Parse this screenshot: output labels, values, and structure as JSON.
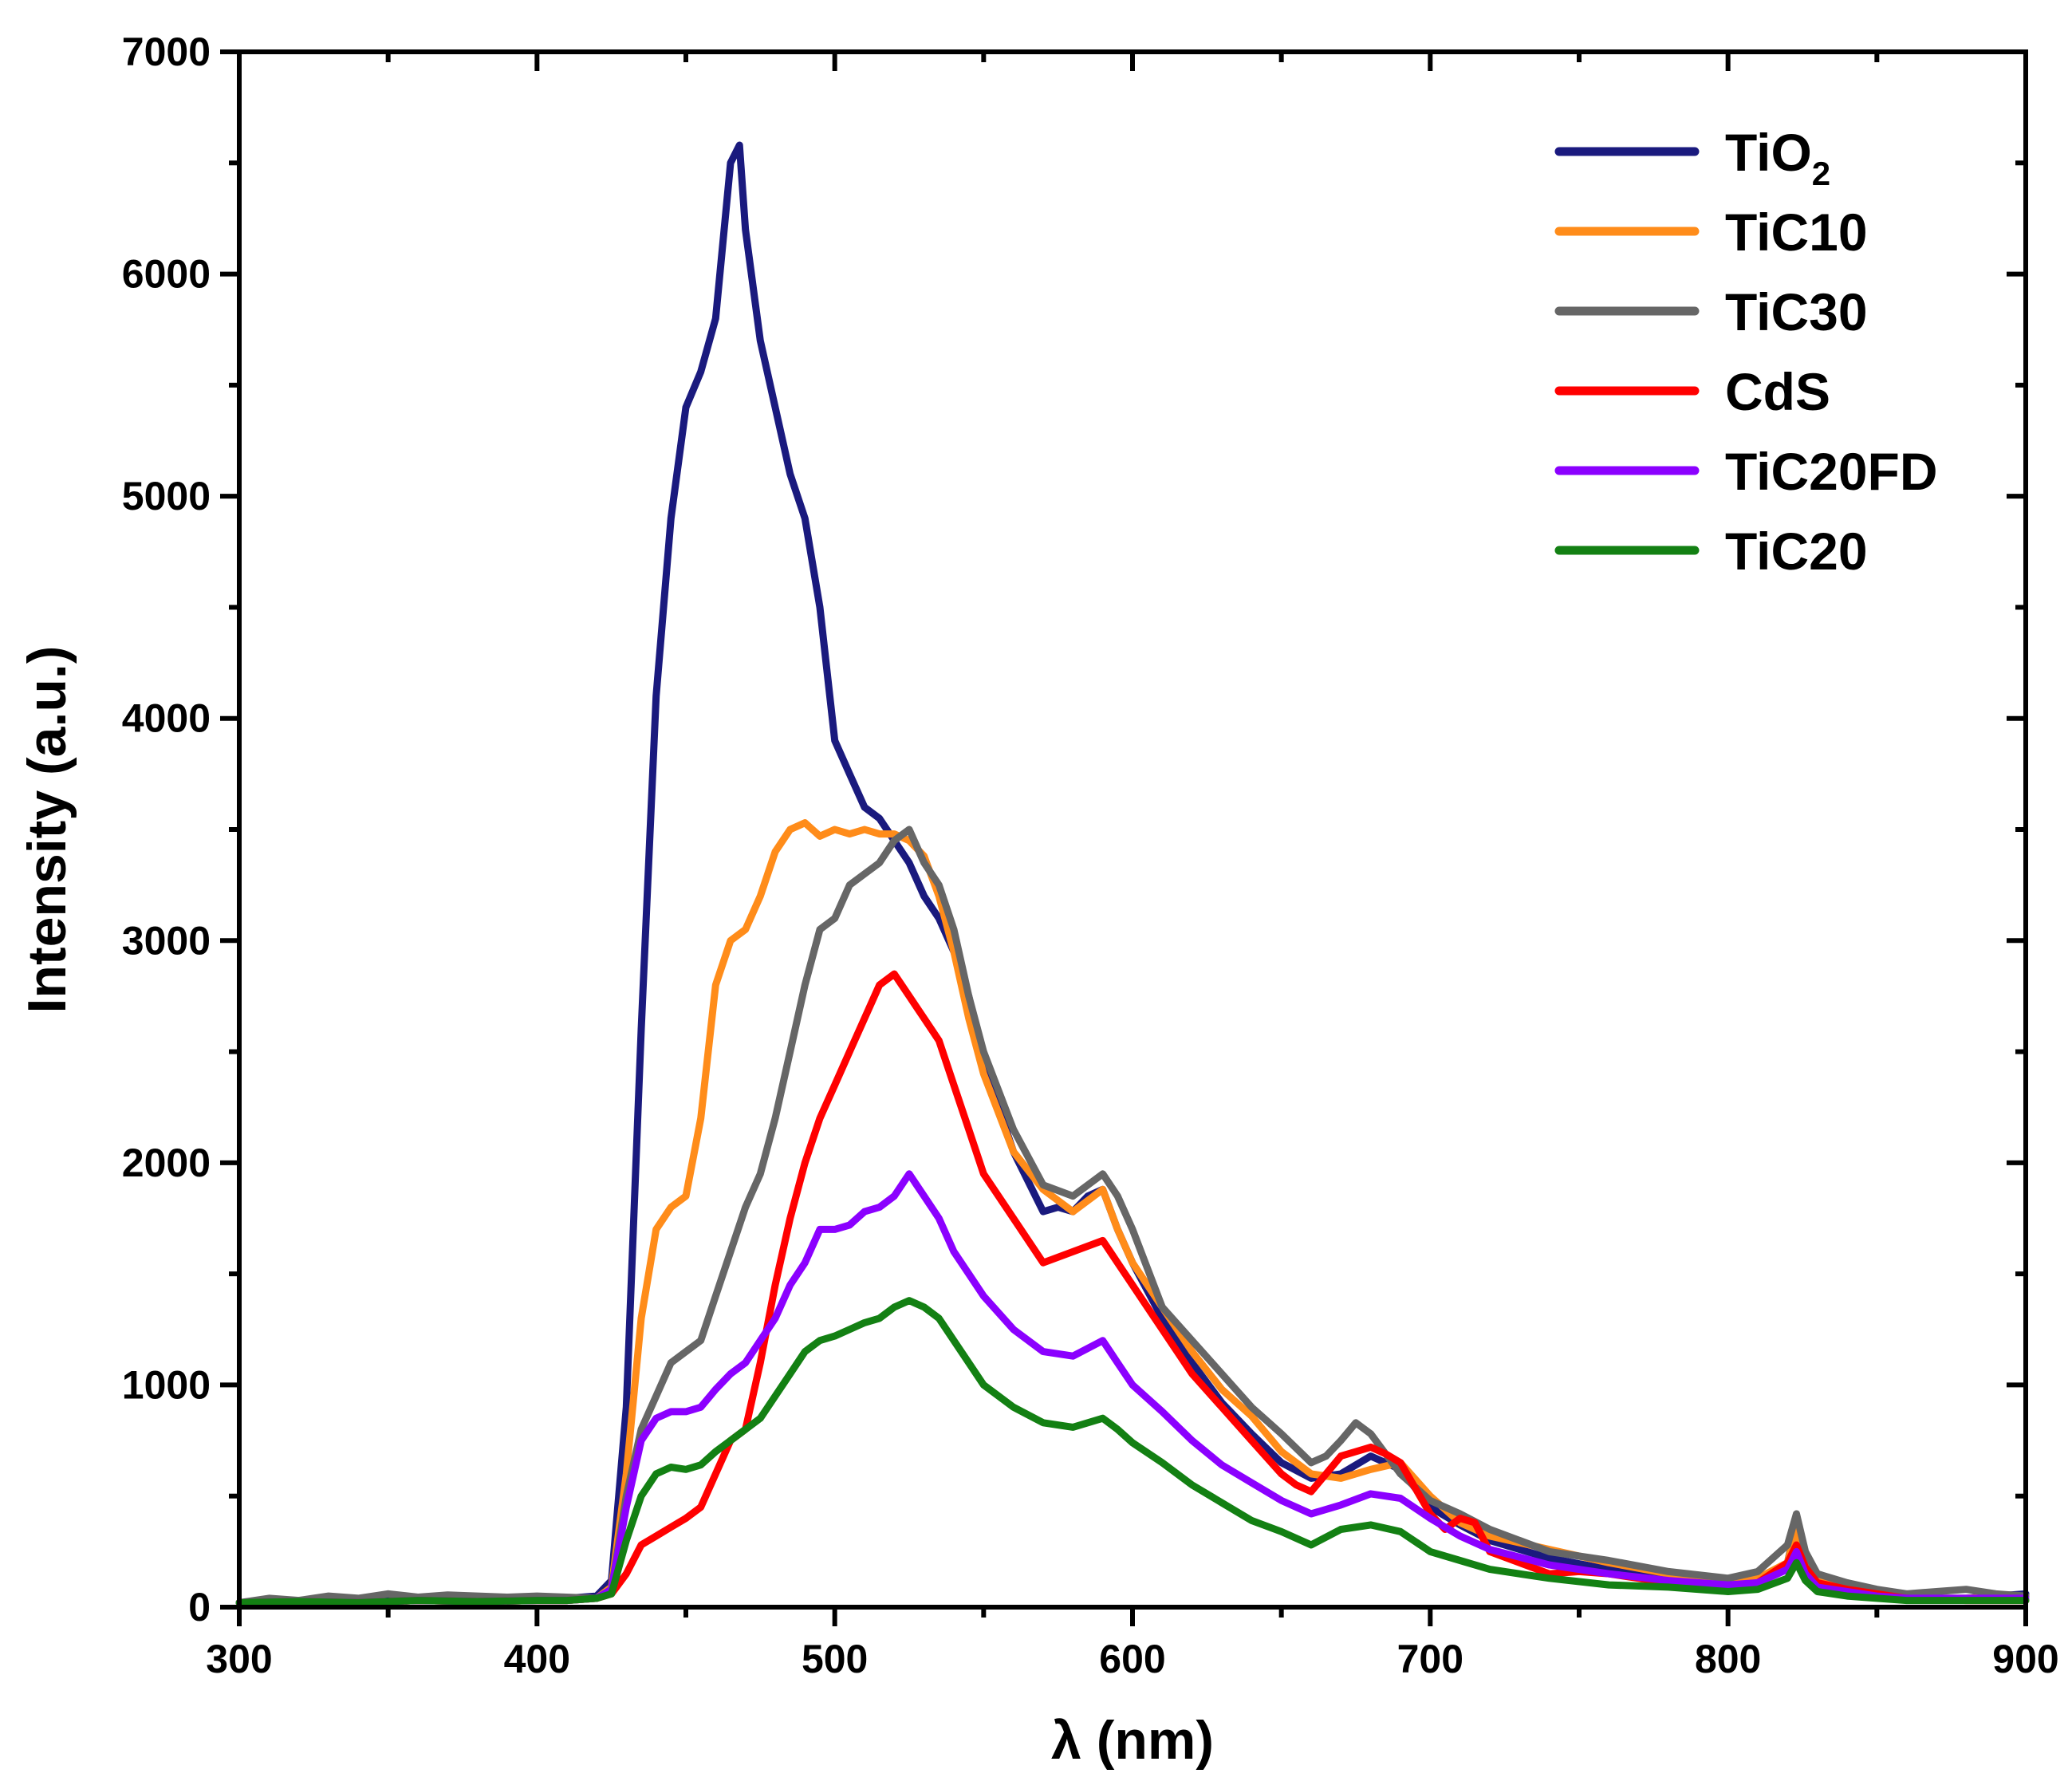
{
  "chart_data": {
    "type": "line",
    "title": "",
    "xlabel": "λ (nm)",
    "ylabel": "Intensity (a.u.)",
    "xlim": [
      300,
      900
    ],
    "ylim": [
      0,
      7000
    ],
    "xticks": [
      300,
      400,
      500,
      600,
      700,
      800,
      900
    ],
    "yticks": [
      0,
      1000,
      2000,
      3000,
      4000,
      5000,
      6000,
      7000
    ],
    "grid": false,
    "legend_position": "top-right",
    "series": [
      {
        "name": "TiO2",
        "label_main": "TiO",
        "label_sub": "2",
        "color": "#1a1a7e",
        "x": [
          300,
          320,
          340,
          360,
          380,
          400,
          410,
          420,
          425,
          430,
          435,
          440,
          445,
          450,
          455,
          460,
          465,
          468,
          470,
          475,
          480,
          485,
          490,
          495,
          500,
          505,
          510,
          515,
          520,
          525,
          530,
          535,
          540,
          545,
          550,
          560,
          570,
          575,
          580,
          585,
          590,
          595,
          600,
          610,
          620,
          630,
          640,
          650,
          660,
          670,
          680,
          690,
          700,
          710,
          720,
          740,
          760,
          780,
          800,
          810,
          820,
          823,
          826,
          830,
          840,
          850,
          860,
          880,
          900
        ],
        "y": [
          20,
          30,
          25,
          35,
          30,
          40,
          40,
          50,
          120,
          900,
          2600,
          4100,
          4900,
          5400,
          5560,
          5800,
          6500,
          6580,
          6200,
          5700,
          5400,
          5100,
          4900,
          4500,
          3900,
          3750,
          3600,
          3550,
          3450,
          3350,
          3200,
          3100,
          2950,
          2750,
          2450,
          2050,
          1780,
          1800,
          1780,
          1850,
          1880,
          1700,
          1550,
          1300,
          1100,
          920,
          780,
          650,
          580,
          600,
          680,
          620,
          450,
          370,
          300,
          220,
          170,
          130,
          100,
          110,
          200,
          380,
          220,
          120,
          90,
          60,
          40,
          40,
          60
        ]
      },
      {
        "name": "TiC10",
        "label_main": "TiC10",
        "label_sub": "",
        "color": "#ff8c1a",
        "x": [
          300,
          320,
          340,
          360,
          380,
          400,
          410,
          420,
          425,
          430,
          435,
          440,
          445,
          450,
          455,
          460,
          465,
          470,
          475,
          480,
          485,
          490,
          495,
          500,
          505,
          510,
          515,
          520,
          525,
          530,
          535,
          540,
          545,
          550,
          560,
          570,
          580,
          590,
          595,
          600,
          610,
          620,
          630,
          640,
          650,
          660,
          670,
          680,
          690,
          700,
          710,
          720,
          740,
          760,
          780,
          800,
          810,
          820,
          823,
          826,
          830,
          840,
          850,
          860,
          880,
          900
        ],
        "y": [
          20,
          25,
          20,
          30,
          25,
          30,
          30,
          40,
          90,
          600,
          1300,
          1700,
          1800,
          1850,
          2200,
          2800,
          3000,
          3050,
          3200,
          3400,
          3500,
          3530,
          3470,
          3500,
          3480,
          3500,
          3480,
          3480,
          3450,
          3380,
          3200,
          2950,
          2650,
          2400,
          2050,
          1880,
          1780,
          1880,
          1700,
          1550,
          1350,
          1150,
          980,
          860,
          700,
          600,
          580,
          620,
          650,
          500,
          380,
          320,
          260,
          200,
          150,
          110,
          130,
          200,
          360,
          220,
          120,
          90,
          60,
          40,
          40,
          50
        ]
      },
      {
        "name": "TiC30",
        "label_main": "TiC30",
        "label_sub": "",
        "color": "#666666",
        "x": [
          300,
          310,
          320,
          330,
          340,
          350,
          360,
          370,
          380,
          390,
          400,
          410,
          420,
          425,
          430,
          435,
          440,
          445,
          450,
          455,
          460,
          465,
          470,
          475,
          480,
          485,
          490,
          495,
          500,
          505,
          510,
          515,
          520,
          525,
          530,
          535,
          540,
          545,
          550,
          560,
          570,
          580,
          590,
          595,
          600,
          610,
          620,
          630,
          640,
          650,
          660,
          665,
          670,
          675,
          680,
          690,
          700,
          710,
          720,
          730,
          740,
          760,
          780,
          800,
          810,
          820,
          823,
          826,
          830,
          840,
          850,
          860,
          870,
          880,
          890,
          900
        ],
        "y": [
          20,
          40,
          30,
          50,
          40,
          60,
          45,
          55,
          50,
          45,
          50,
          45,
          40,
          80,
          500,
          800,
          950,
          1100,
          1150,
          1200,
          1400,
          1600,
          1800,
          1950,
          2200,
          2500,
          2800,
          3050,
          3100,
          3250,
          3300,
          3350,
          3450,
          3500,
          3350,
          3250,
          3050,
          2750,
          2500,
          2150,
          1900,
          1850,
          1950,
          1850,
          1700,
          1350,
          1200,
          1050,
          900,
          780,
          650,
          680,
          750,
          830,
          780,
          600,
          480,
          420,
          350,
          300,
          250,
          210,
          160,
          130,
          160,
          280,
          420,
          250,
          150,
          110,
          80,
          60,
          70,
          80,
          60,
          50
        ]
      },
      {
        "name": "CdS",
        "label_main": "CdS",
        "label_sub": "",
        "color": "#ff0000",
        "x": [
          300,
          320,
          340,
          360,
          380,
          400,
          410,
          420,
          425,
          430,
          435,
          440,
          445,
          450,
          455,
          460,
          465,
          470,
          475,
          480,
          485,
          490,
          495,
          500,
          505,
          510,
          515,
          520,
          525,
          530,
          535,
          540,
          545,
          550,
          560,
          570,
          580,
          590,
          595,
          600,
          610,
          620,
          630,
          640,
          650,
          655,
          660,
          665,
          670,
          675,
          680,
          685,
          690,
          700,
          705,
          710,
          715,
          720,
          730,
          740,
          750,
          760,
          780,
          800,
          810,
          820,
          823,
          826,
          830,
          840,
          850,
          860,
          880,
          900
        ],
        "y": [
          20,
          25,
          20,
          30,
          25,
          30,
          30,
          40,
          60,
          150,
          280,
          320,
          360,
          400,
          450,
          600,
          750,
          800,
          1100,
          1450,
          1750,
          2000,
          2200,
          2350,
          2500,
          2650,
          2800,
          2850,
          2750,
          2650,
          2550,
          2350,
          2150,
          1950,
          1750,
          1550,
          1600,
          1650,
          1550,
          1450,
          1250,
          1050,
          900,
          750,
          600,
          550,
          520,
          600,
          680,
          700,
          720,
          690,
          650,
          420,
          350,
          400,
          380,
          250,
          200,
          150,
          160,
          150,
          110,
          80,
          110,
          200,
          280,
          180,
          110,
          80,
          60,
          40,
          30,
          30
        ]
      },
      {
        "name": "TiC20FD",
        "label_main": "TiC20FD",
        "label_sub": "",
        "color": "#8b00ff",
        "x": [
          300,
          320,
          340,
          360,
          380,
          400,
          410,
          420,
          425,
          430,
          435,
          440,
          445,
          450,
          455,
          460,
          465,
          470,
          475,
          480,
          485,
          490,
          495,
          500,
          505,
          510,
          515,
          520,
          525,
          530,
          535,
          540,
          545,
          550,
          560,
          570,
          580,
          590,
          595,
          600,
          610,
          620,
          630,
          640,
          650,
          660,
          670,
          680,
          690,
          700,
          710,
          720,
          740,
          760,
          780,
          800,
          810,
          820,
          823,
          826,
          830,
          840,
          850,
          860,
          880,
          900
        ],
        "y": [
          20,
          25,
          20,
          30,
          25,
          30,
          30,
          40,
          80,
          450,
          750,
          850,
          880,
          880,
          900,
          980,
          1050,
          1100,
          1200,
          1300,
          1450,
          1550,
          1700,
          1700,
          1720,
          1780,
          1800,
          1850,
          1950,
          1850,
          1750,
          1600,
          1500,
          1400,
          1250,
          1150,
          1130,
          1200,
          1100,
          1000,
          880,
          750,
          640,
          560,
          480,
          420,
          460,
          510,
          490,
          400,
          320,
          260,
          190,
          150,
          120,
          100,
          110,
          170,
          250,
          150,
          90,
          70,
          50,
          40,
          40,
          40
        ]
      },
      {
        "name": "TiC20",
        "label_main": "TiC20",
        "label_sub": "",
        "color": "#138013",
        "x": [
          300,
          320,
          340,
          360,
          380,
          400,
          410,
          420,
          425,
          430,
          435,
          440,
          445,
          450,
          455,
          460,
          465,
          470,
          475,
          480,
          485,
          490,
          495,
          500,
          505,
          510,
          515,
          520,
          525,
          530,
          535,
          540,
          545,
          550,
          560,
          570,
          580,
          590,
          595,
          600,
          610,
          620,
          630,
          640,
          650,
          660,
          670,
          680,
          690,
          700,
          710,
          720,
          740,
          760,
          780,
          800,
          810,
          820,
          823,
          826,
          830,
          840,
          850,
          860,
          880,
          900
        ],
        "y": [
          20,
          25,
          20,
          30,
          25,
          30,
          30,
          40,
          60,
          300,
          500,
          600,
          630,
          620,
          640,
          700,
          750,
          800,
          850,
          950,
          1050,
          1150,
          1200,
          1220,
          1250,
          1280,
          1300,
          1350,
          1380,
          1350,
          1300,
          1200,
          1100,
          1000,
          900,
          830,
          810,
          850,
          800,
          740,
          650,
          550,
          470,
          390,
          340,
          280,
          350,
          370,
          340,
          250,
          210,
          170,
          130,
          100,
          90,
          70,
          80,
          130,
          200,
          120,
          70,
          50,
          40,
          30,
          30,
          30
        ]
      }
    ]
  }
}
